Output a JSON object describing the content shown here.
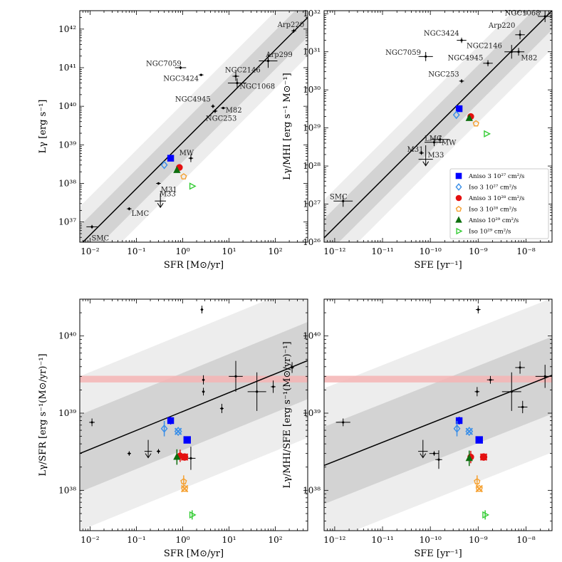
{
  "chart_data": [
    {
      "id": "p1",
      "type": "scatter",
      "xlabel": "SFR [M⊙/yr]",
      "ylabel": "Lγ [erg s⁻¹]",
      "xscale": "log",
      "yscale": "log",
      "xlim": [
        0.006,
        500
      ],
      "ylim": [
        3e+36,
        3e+42
      ],
      "xticks": [
        {
          "v": 0.01,
          "label": "10⁻²"
        },
        {
          "v": 0.1,
          "label": "10⁻¹"
        },
        {
          "v": 1,
          "label": "10⁰"
        },
        {
          "v": 10,
          "label": "10¹"
        },
        {
          "v": 100,
          "label": "10²"
        }
      ],
      "yticks": [
        {
          "v": 1e+37,
          "label": "10³⁷"
        },
        {
          "v": 1e+38,
          "label": "10³⁸"
        },
        {
          "v": 1e+39,
          "label": "10³⁹"
        },
        {
          "v": 1e+40,
          "label": "10⁴⁰"
        },
        {
          "v": 1e+41,
          "label": "10⁴¹"
        },
        {
          "v": 1e+42,
          "label": "10⁴²"
        }
      ],
      "fit": {
        "x": [
          0.006,
          500
        ],
        "y": [
          2.5e+36,
          2e+42
        ]
      },
      "bands": [
        {
          "dex": 0.5,
          "color": "#d3d3d3"
        },
        {
          "dex": 1.0,
          "color": "#ededed"
        }
      ],
      "galaxies": [
        {
          "name": "SMC",
          "x": 0.011,
          "y": 7.5e+36,
          "xe": 0.12,
          "ye": 0.05,
          "lx": -0.01,
          "ly": -0.35,
          "anchor": "start"
        },
        {
          "name": "LMC",
          "x": 0.07,
          "y": 2.2e+37,
          "xe": 0.05,
          "ye": 0.04,
          "lx": 0.05,
          "ly": -0.18,
          "anchor": "start"
        },
        {
          "name": "M33",
          "x": 0.33,
          "y": 3.5e+37,
          "xe": 0.12,
          "ye": 0,
          "ul": 5.5e+37,
          "lx": -0.02,
          "ly": 0.12,
          "anchor": "start"
        },
        {
          "name": "M31",
          "x": 0.3,
          "y": 1e+38,
          "xe": 0.05,
          "ye": 0.03,
          "lx": 0.05,
          "ly": -0.22,
          "anchor": "start"
        },
        {
          "name": "MW",
          "x": 1.5,
          "y": 4.5e+38,
          "xe": 0.05,
          "ye": 0.1,
          "lx": -0.25,
          "ly": 0.08,
          "anchor": "start"
        },
        {
          "name": "NGC253",
          "x": 5.0,
          "y": 7.5e+39,
          "xe": 0.05,
          "ye": 0.05,
          "lx": -0.2,
          "ly": -0.25,
          "anchor": "start"
        },
        {
          "name": "NGC4945",
          "x": 4.5,
          "y": 1e+40,
          "xe": 0.04,
          "ye": 0.05,
          "lx": -0.05,
          "ly": 0.12,
          "anchor": "end"
        },
        {
          "name": "M82",
          "x": 7.5,
          "y": 9e+39,
          "xe": 0.05,
          "ye": 0.03,
          "lx": 0.05,
          "ly": -0.12,
          "anchor": "start"
        },
        {
          "name": "NGC3424",
          "x": 2.5,
          "y": 6.5e+40,
          "xe": 0.05,
          "ye": 0.03,
          "lx": -0.05,
          "ly": -0.15,
          "anchor": "end"
        },
        {
          "name": "NGC7059",
          "x": 0.9,
          "y": 1e+41,
          "xe": 0.12,
          "ye": 0.04,
          "lx": 0.02,
          "ly": 0.05,
          "anchor": "end"
        },
        {
          "name": "NGC2146",
          "x": 14,
          "y": 6e+40,
          "xe": 0.07,
          "ye": 0.12,
          "lx": 0.15,
          "ly": 0.1,
          "anchor": "middle"
        },
        {
          "name": "NGC1068",
          "x": 15,
          "y": 4e+40,
          "xe": 0.2,
          "ye": 0.12,
          "lx": 0.05,
          "ly": -0.15,
          "anchor": "start"
        },
        {
          "name": "Arp299",
          "x": 70,
          "y": 1.5e+41,
          "xe": 0.2,
          "ye": 0.18,
          "lx": -0.05,
          "ly": 0.1,
          "anchor": "start"
        },
        {
          "name": "Arp220",
          "x": 250,
          "y": 9e+41,
          "xe": 0.05,
          "ye": 0.05,
          "lx": -0.35,
          "ly": 0.1,
          "anchor": "start"
        }
      ],
      "sims": [
        {
          "series": "aniso3e27",
          "x": 0.55,
          "y": 4.5e+38
        },
        {
          "series": "iso3e27",
          "x": 0.4,
          "y": 3e+38
        },
        {
          "series": "aniso3e28",
          "x": 0.85,
          "y": 2.6e+38
        },
        {
          "series": "iso3e28",
          "x": 1.05,
          "y": 1.5e+38
        },
        {
          "series": "aniso1e29",
          "x": 0.75,
          "y": 2.2e+38
        },
        {
          "series": "iso1e29",
          "x": 1.6,
          "y": 8.5e+37
        }
      ]
    },
    {
      "id": "p2",
      "type": "scatter",
      "xlabel": "SFE [yr⁻¹]",
      "ylabel": "Lγ/MHI [erg s⁻¹ M⊙⁻¹]",
      "xscale": "log",
      "yscale": "log",
      "xlim": [
        6e-13,
        3.5e-08
      ],
      "ylim": [
        1e+26,
        1.2e+32
      ],
      "xticks": [
        {
          "v": 1e-12,
          "label": "10⁻¹²"
        },
        {
          "v": 1e-11,
          "label": "10⁻¹¹"
        },
        {
          "v": 1e-10,
          "label": "10⁻¹⁰"
        },
        {
          "v": 1e-09,
          "label": "10⁻⁹"
        },
        {
          "v": 1e-08,
          "label": "10⁻⁸"
        }
      ],
      "yticks": [
        {
          "v": 1e+26,
          "label": "10²⁶"
        },
        {
          "v": 1e+27,
          "label": "10²⁷"
        },
        {
          "v": 1e+28,
          "label": "10²⁸"
        },
        {
          "v": 1e+29,
          "label": "10²⁹"
        },
        {
          "v": 1e+30,
          "label": "10³⁰"
        },
        {
          "v": 1e+31,
          "label": "10³¹"
        },
        {
          "v": 1e+32,
          "label": "10³²"
        }
      ],
      "fit": {
        "x": [
          6e-13,
          3.5e-08
        ],
        "y": [
          1.3e+26,
          1.2e+32
        ]
      },
      "bands": [
        {
          "dex": 0.5,
          "color": "#d3d3d3"
        },
        {
          "dex": 1.0,
          "color": "#ededed"
        }
      ],
      "galaxies": [
        {
          "name": "SMC",
          "x": 1.5e-12,
          "y": 1.2e+27,
          "xe": 0.2,
          "ye": 0.15,
          "lx": -0.28,
          "ly": 0.05,
          "anchor": "start"
        },
        {
          "name": "LMC",
          "x": 1.2e-10,
          "y": 4.2e+28,
          "xe": 0.2,
          "ye": 0.1,
          "lx": -0.2,
          "ly": 0.04,
          "anchor": "start"
        },
        {
          "name": "MW",
          "x": 1.6e-10,
          "y": 5e+28,
          "xe": 0.2,
          "ye": 0.1,
          "lx": 0.03,
          "ly": -0.15,
          "anchor": "start"
        },
        {
          "name": "M31",
          "x": 6.5e-11,
          "y": 2.2e+28,
          "xe": 0.05,
          "ye": 0.05,
          "lx": -0.3,
          "ly": 0.03,
          "anchor": "start"
        },
        {
          "name": "M33",
          "x": 8e-11,
          "y": 1.5e+28,
          "xe": 0.15,
          "ye": 0,
          "ul": 3.5e+28,
          "lx": 0.04,
          "ly": 0.05,
          "anchor": "start"
        },
        {
          "name": "NGC7059",
          "x": 8e-11,
          "y": 7.5e+30,
          "xe": 0.15,
          "ye": 0.12,
          "lx": -0.1,
          "ly": 0.04,
          "anchor": "end"
        },
        {
          "name": "NGC3424",
          "x": 4.5e-10,
          "y": 2e+31,
          "xe": 0.1,
          "ye": 0.07,
          "lx": -0.05,
          "ly": 0.12,
          "anchor": "end"
        },
        {
          "name": "NGC253",
          "x": 4.5e-10,
          "y": 1.7e+30,
          "xe": 0.05,
          "ye": 0.05,
          "lx": -0.05,
          "ly": 0.12,
          "anchor": "end"
        },
        {
          "name": "NGC4945",
          "x": 1.6e-09,
          "y": 5e+30,
          "xe": 0.1,
          "ye": 0.08,
          "lx": -0.1,
          "ly": 0.08,
          "anchor": "end"
        },
        {
          "name": "NGC2146",
          "x": 5e-09,
          "y": 1e+31,
          "xe": 0.15,
          "ye": 0.18,
          "lx": -0.2,
          "ly": 0.1,
          "anchor": "end"
        },
        {
          "name": "M82",
          "x": 7e-09,
          "y": 1e+31,
          "xe": 0.12,
          "ye": 0.1,
          "lx": 0.05,
          "ly": -0.22,
          "anchor": "start"
        },
        {
          "name": "Arp220",
          "x": 7.5e-09,
          "y": 2.8e+31,
          "xe": 0.1,
          "ye": 0.12,
          "lx": -0.1,
          "ly": 0.18,
          "anchor": "end"
        },
        {
          "name": "NGC1068",
          "x": 2.5e-08,
          "y": 8.5e+31,
          "xe": 0.15,
          "ye": 0.15,
          "lx": -0.1,
          "ly": 0.03,
          "anchor": "end"
        }
      ],
      "sims": [
        {
          "series": "aniso3e27",
          "x": 4e-10,
          "y": 3.2e+29
        },
        {
          "series": "iso3e27",
          "x": 3.5e-10,
          "y": 2.2e+29
        },
        {
          "series": "aniso3e28",
          "x": 7e-10,
          "y": 2e+29
        },
        {
          "series": "iso3e28",
          "x": 9e-10,
          "y": 1.3e+29
        },
        {
          "series": "aniso1e29",
          "x": 6.5e-10,
          "y": 1.8e+29
        },
        {
          "series": "iso1e29",
          "x": 1.5e-09,
          "y": 7e+28
        }
      ],
      "legend": {
        "placement": "lower-right"
      }
    },
    {
      "id": "p3",
      "type": "scatter",
      "xlabel": "SFR [M⊙/yr]",
      "ylabel": "Lγ/SFR [erg s⁻¹(M⊙/yr)⁻¹]",
      "xscale": "log",
      "yscale": "log",
      "xlim": [
        0.006,
        500
      ],
      "ylim": [
        3e+37,
        3e+40
      ],
      "xticks": [
        {
          "v": 0.01,
          "label": "10⁻²"
        },
        {
          "v": 0.1,
          "label": "10⁻¹"
        },
        {
          "v": 1,
          "label": "10⁰"
        },
        {
          "v": 10,
          "label": "10¹"
        },
        {
          "v": 100,
          "label": "10²"
        }
      ],
      "yticks": [
        {
          "v": 1e+38,
          "label": "10³⁸"
        },
        {
          "v": 1e+39,
          "label": "10³⁹"
        },
        {
          "v": 1e+40,
          "label": "10⁴⁰"
        }
      ],
      "fit": {
        "x": [
          0.006,
          500
        ],
        "y": [
          3e+38,
          4.8e+39
        ]
      },
      "bands": [
        {
          "dex": 0.5,
          "color": "#d3d3d3"
        },
        {
          "dex": 1.0,
          "color": "#ededed"
        }
      ],
      "pink_band": [
        2.5e+39,
        3.05e+39
      ],
      "galaxies": [
        {
          "x": 0.011,
          "y": 7.6e+38,
          "xe": 0.06,
          "ye": 0.05
        },
        {
          "x": 0.07,
          "y": 3e+38,
          "xe": 0.04,
          "ye": 0.03
        },
        {
          "x": 0.3,
          "y": 3.2e+38,
          "xe": 0.04,
          "ye": 0.03
        },
        {
          "x": 0.18,
          "y": 3.2e+38,
          "xe": 0.08,
          "ye": 0,
          "ul": 4.5e+38
        },
        {
          "x": 1.5,
          "y": 2.6e+38,
          "xe": 0.1,
          "ye": 0.15
        },
        {
          "x": 2.6,
          "y": 2.2e+40,
          "xe": 0.03,
          "ye": 0.05
        },
        {
          "x": 2.8,
          "y": 2.7e+39,
          "xe": 0.03,
          "ye": 0.06
        },
        {
          "x": 2.8,
          "y": 1.9e+39,
          "xe": 0.03,
          "ye": 0.05
        },
        {
          "x": 7.0,
          "y": 1.15e+39,
          "xe": 0.04,
          "ye": 0.06
        },
        {
          "x": 14,
          "y": 3e+39,
          "xe": 0.15,
          "ye": 0.2
        },
        {
          "x": 40,
          "y": 1.9e+39,
          "xe": 0.2,
          "ye": 0.25
        },
        {
          "x": 90,
          "y": 2.2e+39,
          "xe": 0.05,
          "ye": 0.08
        },
        {
          "x": 230,
          "y": 3.9e+39,
          "xe": 0.04,
          "ye": 0.07
        }
      ],
      "sims": [
        {
          "series": "aniso3e27",
          "x": 0.55,
          "y": 8e+38,
          "ye": 0.05
        },
        {
          "series": "iso3e27",
          "x": 0.4,
          "y": 6.3e+38,
          "ye": 0.1
        },
        {
          "series": "iso3e27",
          "x": 0.8,
          "y": 5.8e+38,
          "cross": true
        },
        {
          "series": "aniso3e27",
          "x": 1.25,
          "y": 4.5e+38,
          "cross": true
        },
        {
          "series": "aniso3e28",
          "x": 1.1,
          "y": 2.7e+38,
          "cross": true
        },
        {
          "series": "aniso3e28",
          "x": 0.88,
          "y": 2.8e+38,
          "ye": 0.08
        },
        {
          "series": "aniso1e29",
          "x": 0.75,
          "y": 2.7e+38,
          "ye": 0.1
        },
        {
          "series": "iso3e28",
          "x": 1.05,
          "y": 1.3e+38,
          "ye": 0.08
        },
        {
          "series": "iso3e28",
          "x": 1.1,
          "y": 1.05e+38,
          "cross": true
        },
        {
          "series": "iso1e29",
          "x": 1.6,
          "y": 4.8e+37,
          "ye": 0.06
        }
      ]
    },
    {
      "id": "p4",
      "type": "scatter",
      "xlabel": "SFE [yr⁻¹]",
      "ylabel": "Lγ/MHI/SFE [erg s⁻¹(M⊙/yr)⁻¹]",
      "xscale": "log",
      "yscale": "log",
      "xlim": [
        6e-13,
        3.5e-08
      ],
      "ylim": [
        3e+37,
        3e+40
      ],
      "xticks": [
        {
          "v": 1e-12,
          "label": "10⁻¹²"
        },
        {
          "v": 1e-11,
          "label": "10⁻¹¹"
        },
        {
          "v": 1e-10,
          "label": "10⁻¹⁰"
        },
        {
          "v": 1e-09,
          "label": "10⁻⁹"
        },
        {
          "v": 1e-08,
          "label": "10⁻⁸"
        }
      ],
      "yticks": [
        {
          "v": 1e+38,
          "label": "10³⁸"
        },
        {
          "v": 1e+39,
          "label": "10³⁹"
        },
        {
          "v": 1e+40,
          "label": "10⁴⁰"
        }
      ],
      "fit": {
        "x": [
          6e-13,
          3.5e-08
        ],
        "y": [
          2.1e+38,
          3.1e+39
        ]
      },
      "bands": [
        {
          "dex": 0.5,
          "color": "#d3d3d3"
        },
        {
          "dex": 1.0,
          "color": "#ededed"
        }
      ],
      "pink_band": [
        2.5e+39,
        3.05e+39
      ],
      "galaxies": [
        {
          "x": 1.5e-12,
          "y": 7.6e+38,
          "xe": 0.15,
          "ye": 0.05
        },
        {
          "x": 7e-11,
          "y": 3.2e+38,
          "xe": 0.1,
          "ye": 0,
          "ul": 4.5e+38
        },
        {
          "x": 1.2e-10,
          "y": 3e+38,
          "xe": 0.1,
          "ye": 0.03
        },
        {
          "x": 1.5e-10,
          "y": 2.5e+38,
          "xe": 0.07,
          "ye": 0.12
        },
        {
          "x": 1e-09,
          "y": 2.2e+40,
          "xe": 0.05,
          "ye": 0.05
        },
        {
          "x": 9.5e-10,
          "y": 1.9e+39,
          "xe": 0.05,
          "ye": 0.06
        },
        {
          "x": 1.8e-09,
          "y": 2.7e+39,
          "xe": 0.07,
          "ye": 0.05
        },
        {
          "x": 5e-09,
          "y": 1.9e+39,
          "xe": 0.2,
          "ye": 0.25
        },
        {
          "x": 7.5e-09,
          "y": 3.9e+39,
          "xe": 0.1,
          "ye": 0.08
        },
        {
          "x": 8.5e-09,
          "y": 1.2e+39,
          "xe": 0.1,
          "ye": 0.08
        },
        {
          "x": 2.5e-08,
          "y": 3e+39,
          "xe": 0.2,
          "ye": 0.15
        }
      ],
      "sims": [
        {
          "series": "aniso3e27",
          "x": 4e-10,
          "y": 8e+38,
          "ye": 0.05
        },
        {
          "series": "iso3e27",
          "x": 3.6e-10,
          "y": 6.3e+38,
          "ye": 0.1
        },
        {
          "series": "iso3e27",
          "x": 6.5e-10,
          "y": 5.8e+38,
          "cross": true
        },
        {
          "series": "aniso3e27",
          "x": 1.05e-09,
          "y": 4.5e+38,
          "cross": true
        },
        {
          "series": "aniso3e28",
          "x": 1.3e-09,
          "y": 2.7e+38,
          "cross": true
        },
        {
          "series": "aniso3e28",
          "x": 7e-10,
          "y": 2.7e+38,
          "ye": 0.08
        },
        {
          "series": "aniso1e29",
          "x": 6.5e-10,
          "y": 2.6e+38,
          "ye": 0.1
        },
        {
          "series": "iso3e28",
          "x": 9.5e-10,
          "y": 1.3e+38,
          "ye": 0.08
        },
        {
          "series": "iso3e28",
          "x": 1.05e-09,
          "y": 1.05e+38,
          "cross": true
        },
        {
          "series": "iso1e29",
          "x": 1.4e-09,
          "y": 4.8e+37,
          "ye": 0.06
        }
      ]
    }
  ],
  "series_styles": {
    "aniso3e27": {
      "label": "Aniso 3 10²⁷ cm²/s",
      "color": "#0000ff",
      "marker": "square",
      "filled": true
    },
    "iso3e27": {
      "label": "Iso 3 10²⁷ cm²/s",
      "color": "#3b8fe8",
      "marker": "diamond",
      "filled": false
    },
    "aniso3e28": {
      "label": "Aniso 3 10²⁸ cm²/s",
      "color": "#e41010",
      "marker": "circle",
      "filled": true
    },
    "iso3e28": {
      "label": "Iso 3 10²⁸ cm²/s",
      "color": "#f5a030",
      "marker": "pentagon",
      "filled": false
    },
    "aniso1e29": {
      "label": "Aniso 10²⁹ cm²/s",
      "color": "#0e6e0e",
      "marker": "triangle-up",
      "filled": true
    },
    "iso1e29": {
      "label": "Iso 10²⁹ cm²/s",
      "color": "#33cc33",
      "marker": "triangle-right",
      "filled": false
    }
  },
  "legend_order": [
    "aniso3e27",
    "iso3e27",
    "aniso3e28",
    "iso3e28",
    "aniso1e29",
    "iso1e29"
  ],
  "colors": {
    "fit_line": "#000000",
    "band_inner": "#d3d3d3",
    "band_outer": "#ededed",
    "pink_band": "#f4b4b4",
    "galaxy": "#000000"
  }
}
